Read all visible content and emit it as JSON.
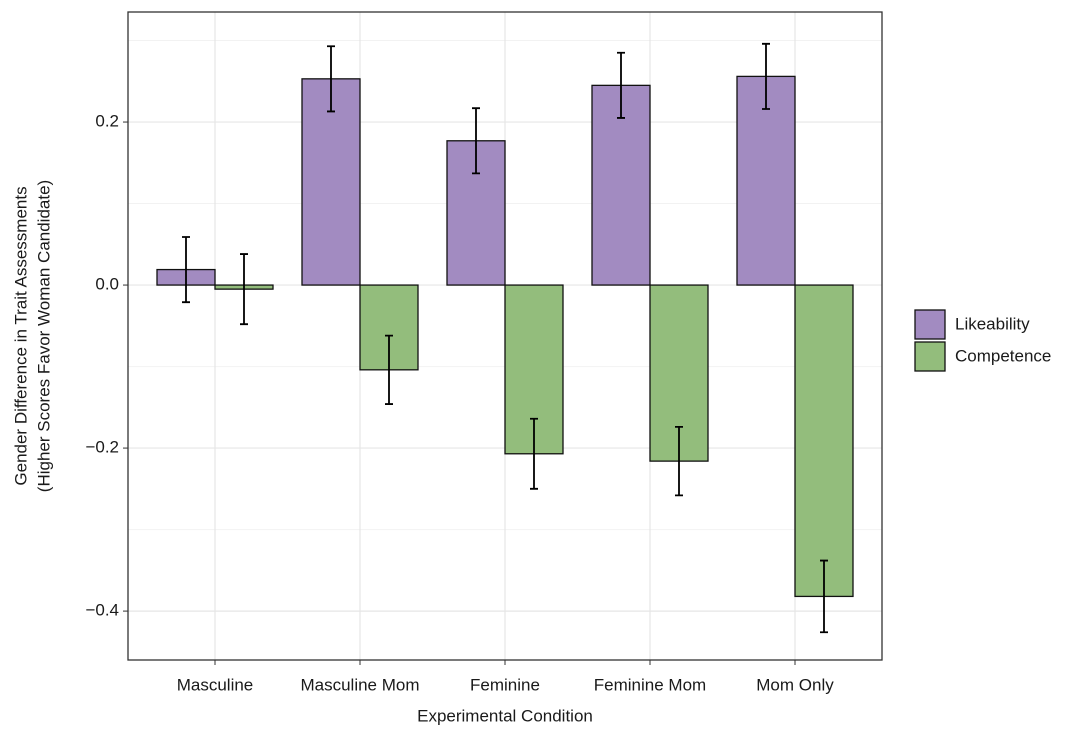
{
  "chart_data": {
    "type": "bar",
    "xlabel": "Experimental Condition",
    "ylabel": [
      "Gender Difference in Trait Assessments",
      "(Higher Scores Favor Woman Candidate)"
    ],
    "categories": [
      "Masculine",
      "Masculine Mom",
      "Feminine",
      "Feminine Mom",
      "Mom Only"
    ],
    "series": [
      {
        "name": "Likeability",
        "color": "#a28bc1",
        "values": [
          0.019,
          0.253,
          0.177,
          0.245,
          0.256
        ],
        "errors": [
          0.04,
          0.04,
          0.04,
          0.04,
          0.04
        ]
      },
      {
        "name": "Competence",
        "color": "#93bd7c",
        "values": [
          -0.005,
          -0.104,
          -0.207,
          -0.216,
          -0.382
        ],
        "errors": [
          0.043,
          0.042,
          0.043,
          0.042,
          0.044
        ]
      }
    ],
    "ylim": [
      -0.46,
      0.335
    ],
    "yticks": [
      {
        "value": -0.4,
        "label": "−0.4"
      },
      {
        "value": -0.2,
        "label": "−0.2"
      },
      {
        "value": 0,
        "label": "0.0"
      },
      0.2
    ],
    "minor_yticks": [
      -0.3,
      -0.1,
      0.1,
      0.3
    ],
    "grid": true,
    "legend": "right"
  }
}
